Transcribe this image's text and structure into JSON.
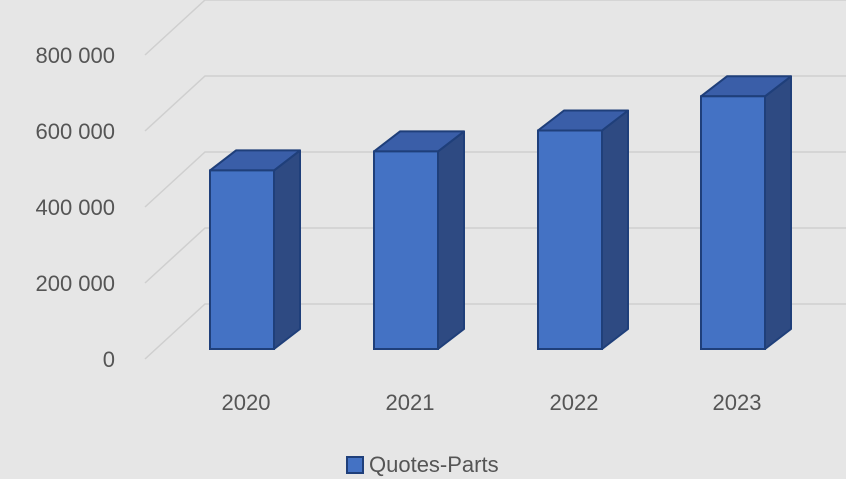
{
  "chart_data": {
    "type": "bar",
    "style": "3d-column",
    "categories": [
      "2020",
      "2021",
      "2022",
      "2023"
    ],
    "series": [
      {
        "name": "Quotes-Parts",
        "values": [
          470000,
          520000,
          575000,
          665000
        ]
      }
    ],
    "y_ticks": [
      "0",
      "200 000",
      "400 000",
      "600 000",
      "800 000"
    ],
    "y_tick_values": [
      0,
      200000,
      400000,
      600000,
      800000
    ],
    "ylim": [
      0,
      800000
    ],
    "grid": true,
    "legend": "bottom-center",
    "colors": {
      "bar_front": "#4472c4",
      "bar_side": "#2e4a82",
      "bar_top": "#3a5ea8",
      "bar_edge": "#1f3f7a",
      "gridline": "#cfcfcf",
      "background": "#e6e6e6"
    }
  }
}
